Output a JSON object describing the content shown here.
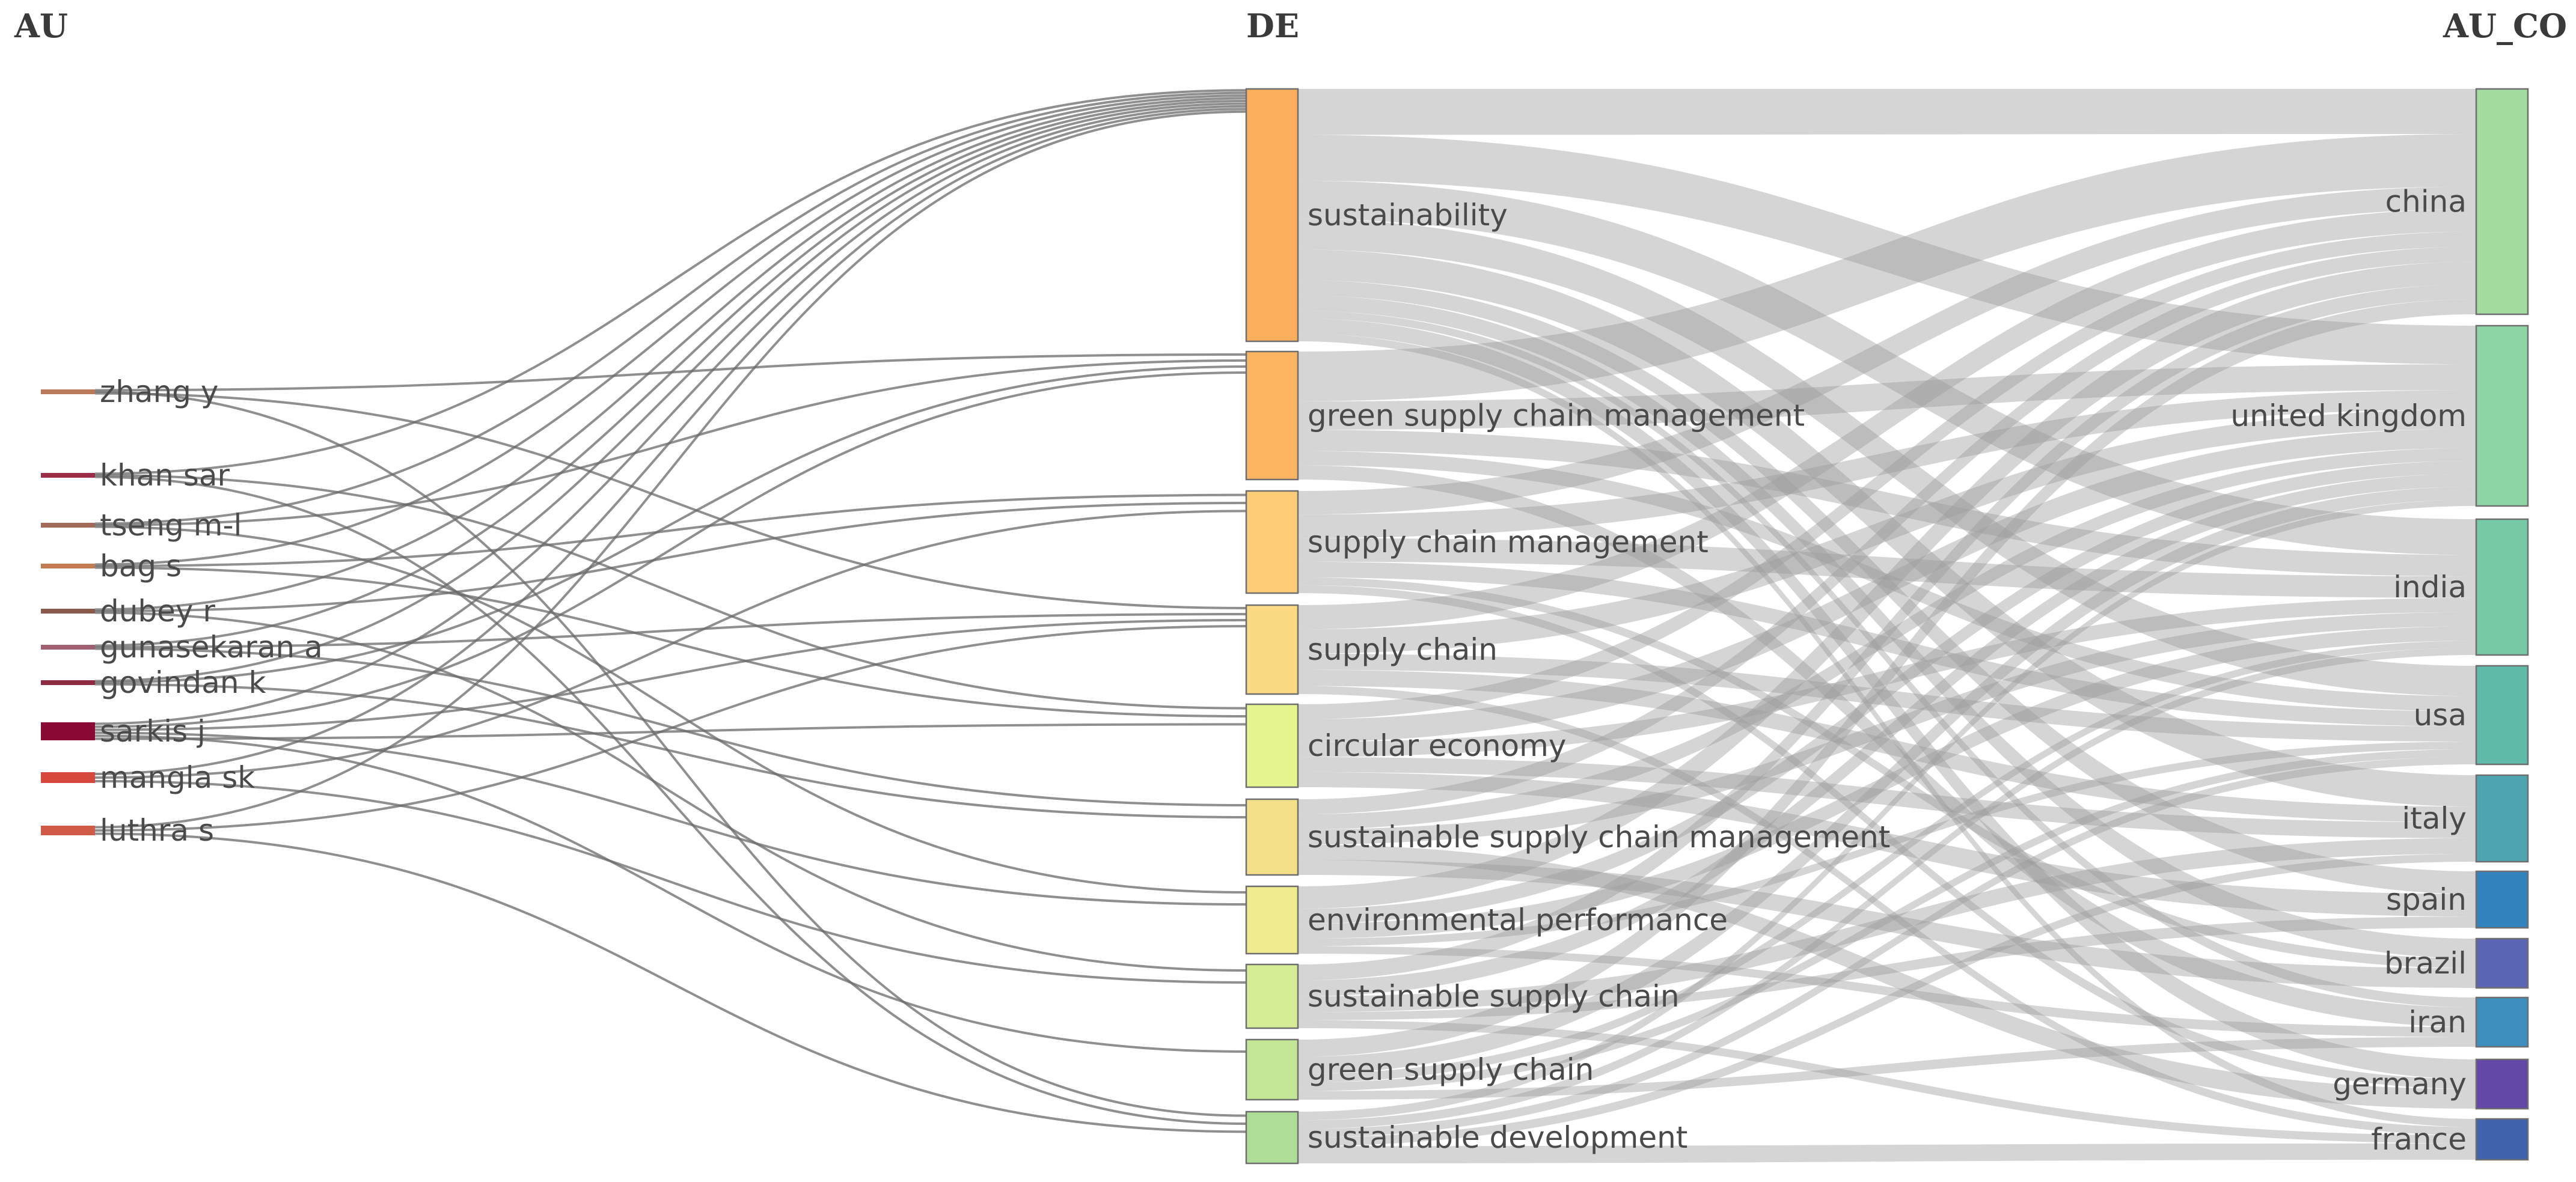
{
  "title": "",
  "columns": {
    "au": "AU",
    "de": "DE",
    "au_co": "AU_CO"
  },
  "authors": [
    {
      "id": "zhang",
      "label": "zhang y",
      "color": "#b87a5a",
      "weight": 2
    },
    {
      "id": "khan",
      "label": "khan sar",
      "color": "#9b2d47",
      "weight": 2
    },
    {
      "id": "tseng",
      "label": "tseng m-l",
      "color": "#a36a5a",
      "weight": 2
    },
    {
      "id": "bag",
      "label": "bag s",
      "color": "#c47b52",
      "weight": 2
    },
    {
      "id": "dubey",
      "label": "dubey r",
      "color": "#8a5a4a",
      "weight": 2
    },
    {
      "id": "gunasekaran",
      "label": "gunasekaran a",
      "color": "#a06070",
      "weight": 2
    },
    {
      "id": "govindan",
      "label": "govindan k",
      "color": "#8e2b42",
      "weight": 2
    },
    {
      "id": "sarkis",
      "label": "sarkis j",
      "color": "#8a0a35",
      "weight": 6
    },
    {
      "id": "mangla",
      "label": "mangla sk",
      "color": "#d8473c",
      "weight": 3
    },
    {
      "id": "luthra",
      "label": "luthra s",
      "color": "#cf5a45",
      "weight": 3
    }
  ],
  "keywords": [
    {
      "id": "sustainability",
      "label": "sustainability",
      "color": "#fbae5b",
      "weight": 40
    },
    {
      "id": "gscm",
      "label": "green supply chain management",
      "color": "#fbb562",
      "weight": 20
    },
    {
      "id": "scm",
      "label": "supply chain management",
      "color": "#fccd76",
      "weight": 16
    },
    {
      "id": "sc",
      "label": "supply chain",
      "color": "#fcd983",
      "weight": 14
    },
    {
      "id": "ce",
      "label": "circular economy",
      "color": "#e6f48f",
      "weight": 13
    },
    {
      "id": "sscm",
      "label": "sustainable supply chain management",
      "color": "#f5e08a",
      "weight": 12
    },
    {
      "id": "ep",
      "label": "environmental performance",
      "color": "#eeec8f",
      "weight": 11
    },
    {
      "id": "ssc",
      "label": "sustainable supply chain",
      "color": "#d5ee95",
      "weight": 10
    },
    {
      "id": "gsc",
      "label": "green supply chain",
      "color": "#c2e696",
      "weight": 9
    },
    {
      "id": "sd",
      "label": "sustainable development",
      "color": "#aedd98",
      "weight": 8
    }
  ],
  "countries": [
    {
      "id": "china",
      "label": "china",
      "color": "#a4dba0",
      "weight": 36
    },
    {
      "id": "uk",
      "label": "united kingdom",
      "color": "#8fd5a4",
      "weight": 29
    },
    {
      "id": "india",
      "label": "india",
      "color": "#76c9a5",
      "weight": 22
    },
    {
      "id": "usa",
      "label": "usa",
      "color": "#5fbaa8",
      "weight": 16
    },
    {
      "id": "italy",
      "label": "italy",
      "color": "#4ea5b0",
      "weight": 14
    },
    {
      "id": "spain",
      "label": "spain",
      "color": "#3182bd",
      "weight": 9
    },
    {
      "id": "brazil",
      "label": "brazil",
      "color": "#5b66b4",
      "weight": 8
    },
    {
      "id": "iran",
      "label": "iran",
      "color": "#3e8fbd",
      "weight": 8
    },
    {
      "id": "germany",
      "label": "germany",
      "color": "#6448a8",
      "weight": 8
    },
    {
      "id": "france",
      "label": "france",
      "color": "#3f64ad",
      "weight": 7
    }
  ],
  "links_left": [
    {
      "source": "zhang",
      "target": "gscm",
      "value": 1
    },
    {
      "source": "zhang",
      "target": "sd",
      "value": 1
    },
    {
      "source": "zhang",
      "target": "sc",
      "value": 1
    },
    {
      "source": "khan",
      "target": "sustainability",
      "value": 1
    },
    {
      "source": "khan",
      "target": "ce",
      "value": 1
    },
    {
      "source": "khan",
      "target": "sd",
      "value": 1
    },
    {
      "source": "tseng",
      "target": "sustainability",
      "value": 1
    },
    {
      "source": "tseng",
      "target": "gscm",
      "value": 1
    },
    {
      "source": "tseng",
      "target": "ep",
      "value": 1
    },
    {
      "source": "bag",
      "target": "sustainability",
      "value": 1
    },
    {
      "source": "bag",
      "target": "scm",
      "value": 1
    },
    {
      "source": "bag",
      "target": "ce",
      "value": 1
    },
    {
      "source": "dubey",
      "target": "sustainability",
      "value": 1
    },
    {
      "source": "dubey",
      "target": "scm",
      "value": 1
    },
    {
      "source": "dubey",
      "target": "ssc",
      "value": 1
    },
    {
      "source": "gunasekaran",
      "target": "sustainability",
      "value": 1
    },
    {
      "source": "gunasekaran",
      "target": "sc",
      "value": 1
    },
    {
      "source": "gunasekaran",
      "target": "sscm",
      "value": 1
    },
    {
      "source": "govindan",
      "target": "sustainability",
      "value": 1
    },
    {
      "source": "govindan",
      "target": "gscm",
      "value": 1
    },
    {
      "source": "govindan",
      "target": "sscm",
      "value": 1
    },
    {
      "source": "sarkis",
      "target": "sustainability",
      "value": 1
    },
    {
      "source": "sarkis",
      "target": "gscm",
      "value": 1
    },
    {
      "source": "sarkis",
      "target": "sc",
      "value": 1
    },
    {
      "source": "sarkis",
      "target": "ep",
      "value": 1
    },
    {
      "source": "sarkis",
      "target": "gsc",
      "value": 1
    },
    {
      "source": "sarkis",
      "target": "ce",
      "value": 1
    },
    {
      "source": "mangla",
      "target": "sustainability",
      "value": 1
    },
    {
      "source": "mangla",
      "target": "scm",
      "value": 1
    },
    {
      "source": "mangla",
      "target": "ssc",
      "value": 1
    },
    {
      "source": "luthra",
      "target": "sustainability",
      "value": 1
    },
    {
      "source": "luthra",
      "target": "sc",
      "value": 1
    },
    {
      "source": "luthra",
      "target": "sd",
      "value": 1
    }
  ],
  "links_right": [
    {
      "source": "sustainability",
      "target": "china",
      "value": 6
    },
    {
      "source": "sustainability",
      "target": "uk",
      "value": 6
    },
    {
      "source": "sustainability",
      "target": "india",
      "value": 5
    },
    {
      "source": "sustainability",
      "target": "usa",
      "value": 4
    },
    {
      "source": "sustainability",
      "target": "italy",
      "value": 4
    },
    {
      "source": "sustainability",
      "target": "spain",
      "value": 2
    },
    {
      "source": "sustainability",
      "target": "brazil",
      "value": 2
    },
    {
      "source": "sustainability",
      "target": "iran",
      "value": 1
    },
    {
      "source": "sustainability",
      "target": "germany",
      "value": 2
    },
    {
      "source": "sustainability",
      "target": "france",
      "value": 1
    },
    {
      "source": "gscm",
      "target": "china",
      "value": 7
    },
    {
      "source": "gscm",
      "target": "uk",
      "value": 4
    },
    {
      "source": "gscm",
      "target": "india",
      "value": 3
    },
    {
      "source": "gscm",
      "target": "usa",
      "value": 2
    },
    {
      "source": "gscm",
      "target": "iran",
      "value": 2
    },
    {
      "source": "scm",
      "target": "china",
      "value": 3
    },
    {
      "source": "scm",
      "target": "uk",
      "value": 3
    },
    {
      "source": "scm",
      "target": "india",
      "value": 3
    },
    {
      "source": "scm",
      "target": "usa",
      "value": 2
    },
    {
      "source": "scm",
      "target": "brazil",
      "value": 1
    },
    {
      "source": "scm",
      "target": "germany",
      "value": 1
    },
    {
      "source": "sc",
      "target": "china",
      "value": 3
    },
    {
      "source": "sc",
      "target": "uk",
      "value": 3
    },
    {
      "source": "sc",
      "target": "usa",
      "value": 2
    },
    {
      "source": "sc",
      "target": "italy",
      "value": 2
    },
    {
      "source": "sc",
      "target": "france",
      "value": 1
    },
    {
      "source": "ce",
      "target": "china",
      "value": 2
    },
    {
      "source": "ce",
      "target": "uk",
      "value": 3
    },
    {
      "source": "ce",
      "target": "india",
      "value": 2
    },
    {
      "source": "ce",
      "target": "italy",
      "value": 2
    },
    {
      "source": "ce",
      "target": "spain",
      "value": 2
    },
    {
      "source": "sscm",
      "target": "china",
      "value": 2
    },
    {
      "source": "sscm",
      "target": "uk",
      "value": 2
    },
    {
      "source": "sscm",
      "target": "india",
      "value": 2
    },
    {
      "source": "sscm",
      "target": "germany",
      "value": 2
    },
    {
      "source": "sscm",
      "target": "brazil",
      "value": 2
    },
    {
      "source": "ep",
      "target": "china",
      "value": 3
    },
    {
      "source": "ep",
      "target": "uk",
      "value": 2
    },
    {
      "source": "ep",
      "target": "india",
      "value": 2
    },
    {
      "source": "ep",
      "target": "usa",
      "value": 1
    },
    {
      "source": "ep",
      "target": "iran",
      "value": 1
    },
    {
      "source": "ssc",
      "target": "china",
      "value": 2
    },
    {
      "source": "ssc",
      "target": "uk",
      "value": 2
    },
    {
      "source": "ssc",
      "target": "italy",
      "value": 2
    },
    {
      "source": "ssc",
      "target": "spain",
      "value": 1
    },
    {
      "source": "ssc",
      "target": "france",
      "value": 1
    },
    {
      "source": "gsc",
      "target": "china",
      "value": 2
    },
    {
      "source": "gsc",
      "target": "uk",
      "value": 2
    },
    {
      "source": "gsc",
      "target": "india",
      "value": 1
    },
    {
      "source": "gsc",
      "target": "usa",
      "value": 1
    },
    {
      "source": "gsc",
      "target": "iran",
      "value": 1
    },
    {
      "source": "sd",
      "target": "uk",
      "value": 1
    },
    {
      "source": "sd",
      "target": "india",
      "value": 1
    },
    {
      "source": "sd",
      "target": "usa",
      "value": 1
    },
    {
      "source": "sd",
      "target": "italy",
      "value": 1
    },
    {
      "source": "sd",
      "target": "france",
      "value": 2
    }
  ]
}
